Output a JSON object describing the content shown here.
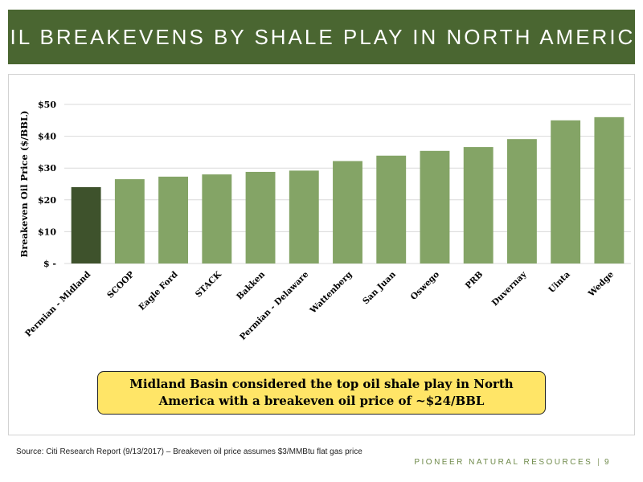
{
  "header": {
    "title": "OIL BREAKEVENS BY SHALE PLAY IN NORTH AMERICA"
  },
  "colors": {
    "header_bg": "#4a6631",
    "highlight_bar": "#3e522c",
    "bar": "#84a466",
    "callout_bg": "#ffe567",
    "footer_text": "#6f8a4a"
  },
  "chart_data": {
    "type": "bar",
    "categories": [
      "Permian - Midland",
      "SCOOP",
      "Eagle Ford",
      "STACK",
      "Bakken",
      "Permian - Delaware",
      "Wattenberg",
      "San Juan",
      "Oswego",
      "PRB",
      "Duvernay",
      "Uinta",
      "Wedge"
    ],
    "values": [
      24,
      26.5,
      27.3,
      28,
      28.8,
      29.2,
      32.2,
      33.9,
      35.4,
      36.6,
      39.1,
      45,
      46
    ],
    "highlighted_category": "Permian - Midland",
    "ylabel": "Breakeven Oil Price ($/BBL)",
    "ylim": [
      0,
      50
    ],
    "yticks": [
      0,
      10,
      20,
      30,
      40,
      50
    ],
    "ytick_labels": [
      "$ -",
      "$10",
      "$20",
      "$30",
      "$40",
      "$50"
    ],
    "grid": true,
    "legend": "none"
  },
  "callout": {
    "line1": "Midland Basin considered the top oil shale play in North",
    "line2": "America with a breakeven oil price of ~$24/BBL"
  },
  "source": "Source: Citi Research Report (9/13/2017) – Breakeven oil price assumes  $3/MMBtu flat gas price",
  "footer": {
    "company": "PIONEER NATURAL RESOURCES",
    "separator": "|",
    "page": "9"
  }
}
